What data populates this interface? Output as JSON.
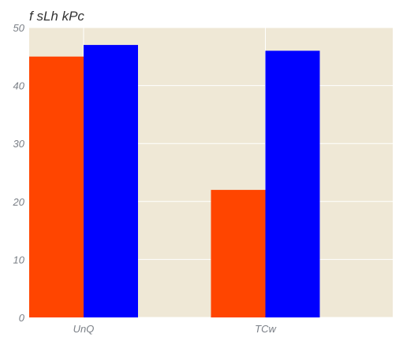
{
  "chart_data": {
    "type": "bar",
    "title": "f sLh kPc",
    "xlabel": "",
    "ylabel": "",
    "categories": [
      "UnQ",
      "TCw"
    ],
    "series": [
      {
        "values": [
          45,
          22
        ],
        "color": "#ff4500"
      },
      {
        "values": [
          47,
          46
        ],
        "color": "#0000ff"
      }
    ],
    "ylim": [
      0,
      50
    ],
    "yticks": [
      "0",
      "10",
      "20",
      "30",
      "40",
      "50"
    ],
    "grid": true,
    "background_color": "#efe8d6",
    "grid_color": "#ffffff"
  }
}
